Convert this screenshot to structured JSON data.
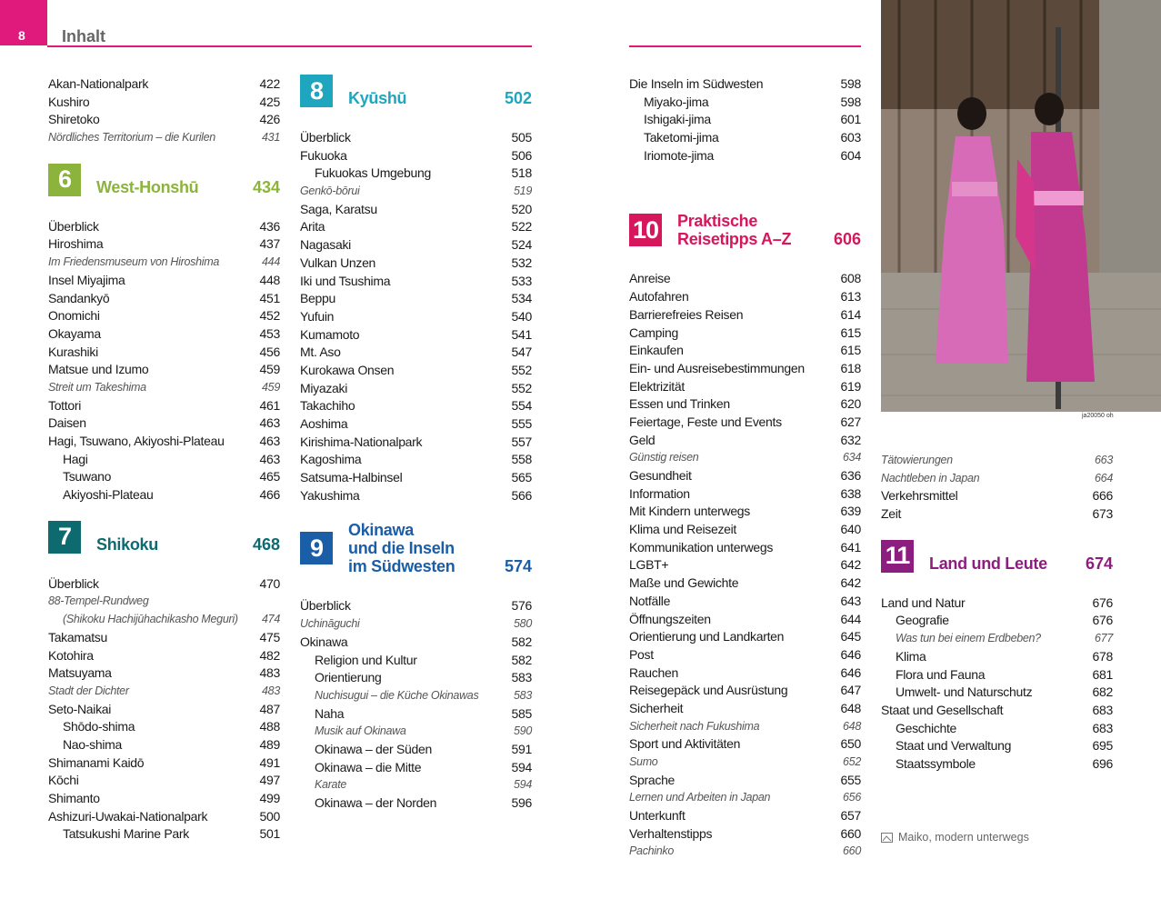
{
  "header": {
    "page_number": 8,
    "title": "Inhalt",
    "color": "#e0197d"
  },
  "photo": {
    "credit": "ja20050 oh",
    "caption": "Maiko, modern unterwegs"
  },
  "columns": [
    {
      "items": [
        {
          "text": "Akan-Nationalpark",
          "page": 422
        },
        {
          "text": "Kushiro",
          "page": 425
        },
        {
          "text": "Shiretoko",
          "page": 426
        },
        {
          "text": "Nördliches Territorium – die Kurilen",
          "page": 431,
          "italic": true
        },
        {
          "chapter": 6,
          "title": [
            "West-Honshū"
          ],
          "page": 434,
          "color": "#8cb43c"
        },
        {
          "text": "Überblick",
          "page": 436
        },
        {
          "text": "Hiroshima",
          "page": 437
        },
        {
          "text": "Im Friedensmuseum von Hiroshima",
          "page": 444,
          "italic": true
        },
        {
          "text": "Insel Miyajima",
          "page": 448
        },
        {
          "text": "Sandankyō",
          "page": 451
        },
        {
          "text": "Onomichi",
          "page": 452
        },
        {
          "text": "Okayama",
          "page": 453
        },
        {
          "text": "Kurashiki",
          "page": 456
        },
        {
          "text": "Matsue und Izumo",
          "page": 459
        },
        {
          "text": "Streit um Takeshima",
          "page": 459,
          "italic": true
        },
        {
          "text": "Tottori",
          "page": 461
        },
        {
          "text": "Daisen",
          "page": 463
        },
        {
          "text": "Hagi, Tsuwano, Akiyoshi-Plateau",
          "page": 463
        },
        {
          "text": "Hagi",
          "page": 463,
          "indent": true
        },
        {
          "text": "Tsuwano",
          "page": 465,
          "indent": true
        },
        {
          "text": "Akiyoshi-Plateau",
          "page": 466,
          "indent": true
        },
        {
          "chapter": 7,
          "title": [
            "Shikoku"
          ],
          "page": 468,
          "color": "#0d6b70"
        },
        {
          "text": "Überblick",
          "page": 470
        },
        {
          "text": "88-Tempel-Rundweg",
          "italic": true
        },
        {
          "text": "(Shikoku Hachijūhachikasho Meguri)",
          "page": 474,
          "italic": true,
          "indent": true
        },
        {
          "text": "Takamatsu",
          "page": 475
        },
        {
          "text": "Kotohira",
          "page": 482
        },
        {
          "text": "Matsuyama",
          "page": 483
        },
        {
          "text": "Stadt der Dichter",
          "page": 483,
          "italic": true
        },
        {
          "text": "Seto-Naikai",
          "page": 487
        },
        {
          "text": "Shōdo-shima",
          "page": 488,
          "indent": true
        },
        {
          "text": "Nao-shima",
          "page": 489,
          "indent": true
        },
        {
          "text": "Shimanami Kaidō",
          "page": 491
        },
        {
          "text": "Kōchi",
          "page": 497
        },
        {
          "text": "Shimanto",
          "page": 499
        },
        {
          "text": "Ashizuri-Uwakai-Nationalpark",
          "page": 500
        },
        {
          "text": "Tatsukushi Marine Park",
          "page": 501,
          "indent": true
        }
      ]
    },
    {
      "items": [
        {
          "chapter": 8,
          "title": [
            "Kyūshū"
          ],
          "page": 502,
          "color": "#1fa6bf"
        },
        {
          "text": "Überblick",
          "page": 505
        },
        {
          "text": "Fukuoka",
          "page": 506
        },
        {
          "text": "Fukuokas Umgebung",
          "page": 518,
          "indent": true
        },
        {
          "text": "Genkō-bōrui",
          "page": 519,
          "italic": true
        },
        {
          "text": "Saga, Karatsu",
          "page": 520
        },
        {
          "text": "Arita",
          "page": 522
        },
        {
          "text": "Nagasaki",
          "page": 524
        },
        {
          "text": "Vulkan Unzen",
          "page": 532
        },
        {
          "text": "Iki und Tsushima",
          "page": 533
        },
        {
          "text": "Beppu",
          "page": 534
        },
        {
          "text": "Yufuin",
          "page": 540
        },
        {
          "text": "Kumamoto",
          "page": 541
        },
        {
          "text": "Mt. Aso",
          "page": 547
        },
        {
          "text": "Kurokawa Onsen",
          "page": 552
        },
        {
          "text": "Miyazaki",
          "page": 552
        },
        {
          "text": "Takachiho",
          "page": 554
        },
        {
          "text": "Aoshima",
          "page": 555
        },
        {
          "text": "Kirishima-Nationalpark",
          "page": 557
        },
        {
          "text": "Kagoshima",
          "page": 558
        },
        {
          "text": "Satsuma-Halbinsel",
          "page": 565
        },
        {
          "text": "Yakushima",
          "page": 566
        },
        {
          "chapter": 9,
          "title": [
            "Okinawa",
            "und die Inseln",
            "im Südwesten"
          ],
          "page": 574,
          "color": "#1a5ea8"
        },
        {
          "text": "Überblick",
          "page": 576
        },
        {
          "text": "Uchināguchi",
          "page": 580,
          "italic": true
        },
        {
          "text": "Okinawa",
          "page": 582
        },
        {
          "text": "Religion und Kultur",
          "page": 582,
          "indent": true
        },
        {
          "text": "Orientierung",
          "page": 583,
          "indent": true
        },
        {
          "text": "Nuchisugui – die Küche Okinawas",
          "page": 583,
          "italic": true,
          "indent": true
        },
        {
          "text": "Naha",
          "page": 585,
          "indent": true
        },
        {
          "text": "Musik auf Okinawa",
          "page": 590,
          "italic": true,
          "indent": true
        },
        {
          "text": "Okinawa – der Süden",
          "page": 591,
          "indent": true
        },
        {
          "text": "Okinawa – die Mitte",
          "page": 594,
          "indent": true
        },
        {
          "text": "Karate",
          "page": 594,
          "italic": true,
          "indent": true
        },
        {
          "text": "Okinawa – der Norden",
          "page": 596,
          "indent": true
        }
      ]
    },
    {
      "items": [
        {
          "text": "Die Inseln im Südwesten",
          "page": 598
        },
        {
          "text": "Miyako-jima",
          "page": 598,
          "indent": true
        },
        {
          "text": "Ishigaki-jima",
          "page": 601,
          "indent": true
        },
        {
          "text": "Taketomi-jima",
          "page": 603,
          "indent": true
        },
        {
          "text": "Iriomote-jima",
          "page": 604,
          "indent": true
        },
        {
          "chapter": 10,
          "title": [
            "Praktische",
            "Reisetipps A–Z"
          ],
          "page": 606,
          "color": "#d6175b"
        },
        {
          "text": "Anreise",
          "page": 608
        },
        {
          "text": "Autofahren",
          "page": 613
        },
        {
          "text": "Barrierefreies Reisen",
          "page": 614
        },
        {
          "text": "Camping",
          "page": 615
        },
        {
          "text": "Einkaufen",
          "page": 615
        },
        {
          "text": "Ein- und Ausreisebestimmungen",
          "page": 618
        },
        {
          "text": "Elektrizität",
          "page": 619
        },
        {
          "text": "Essen und Trinken",
          "page": 620
        },
        {
          "text": "Feiertage, Feste und Events",
          "page": 627
        },
        {
          "text": "Geld",
          "page": 632
        },
        {
          "text": "Günstig reisen",
          "page": 634,
          "italic": true
        },
        {
          "text": "Gesundheit",
          "page": 636
        },
        {
          "text": "Information",
          "page": 638
        },
        {
          "text": "Mit Kindern unterwegs",
          "page": 639
        },
        {
          "text": "Klima und Reisezeit",
          "page": 640
        },
        {
          "text": "Kommunikation unterwegs",
          "page": 641
        },
        {
          "text": "LGBT+",
          "page": 642
        },
        {
          "text": "Maße und Gewichte",
          "page": 642
        },
        {
          "text": "Notfälle",
          "page": 643
        },
        {
          "text": "Öffnungszeiten",
          "page": 644
        },
        {
          "text": "Orientierung und Landkarten",
          "page": 645
        },
        {
          "text": "Post",
          "page": 646
        },
        {
          "text": "Rauchen",
          "page": 646
        },
        {
          "text": "Reisegepäck und Ausrüstung",
          "page": 647
        },
        {
          "text": "Sicherheit",
          "page": 648
        },
        {
          "text": "Sicherheit nach Fukushima",
          "page": 648,
          "italic": true
        },
        {
          "text": "Sport und Aktivitäten",
          "page": 650
        },
        {
          "text": "Sumo",
          "page": 652,
          "italic": true
        },
        {
          "text": "Sprache",
          "page": 655
        },
        {
          "text": "Lernen und Arbeiten in Japan",
          "page": 656,
          "italic": true
        },
        {
          "text": "Unterkunft",
          "page": 657
        },
        {
          "text": "Verhaltenstipps",
          "page": 660
        },
        {
          "text": "Pachinko",
          "page": 660,
          "italic": true
        }
      ]
    },
    {
      "items": [
        {
          "text": "Tätowierungen",
          "page": 663,
          "italic": true
        },
        {
          "text": "Nachtleben in Japan",
          "page": 664,
          "italic": true
        },
        {
          "text": "Verkehrsmittel",
          "page": 666
        },
        {
          "text": "Zeit",
          "page": 673
        },
        {
          "chapter": 11,
          "title": [
            "Land und Leute"
          ],
          "page": 674,
          "color": "#8b1e7e"
        },
        {
          "text": "Land und Natur",
          "page": 676
        },
        {
          "text": "Geografie",
          "page": 676,
          "indent": true
        },
        {
          "text": "Was tun bei einem Erdbeben?",
          "page": 677,
          "italic": true,
          "indent": true
        },
        {
          "text": "Klima",
          "page": 678,
          "indent": true
        },
        {
          "text": "Flora und Fauna",
          "page": 681,
          "indent": true
        },
        {
          "text": "Umwelt- und Naturschutz",
          "page": 682,
          "indent": true
        },
        {
          "text": "Staat und Gesellschaft",
          "page": 683
        },
        {
          "text": "Geschichte",
          "page": 683,
          "indent": true
        },
        {
          "text": "Staat und Verwaltung",
          "page": 695,
          "indent": true
        },
        {
          "text": "Staatssymbole",
          "page": 696,
          "indent": true
        }
      ]
    }
  ]
}
